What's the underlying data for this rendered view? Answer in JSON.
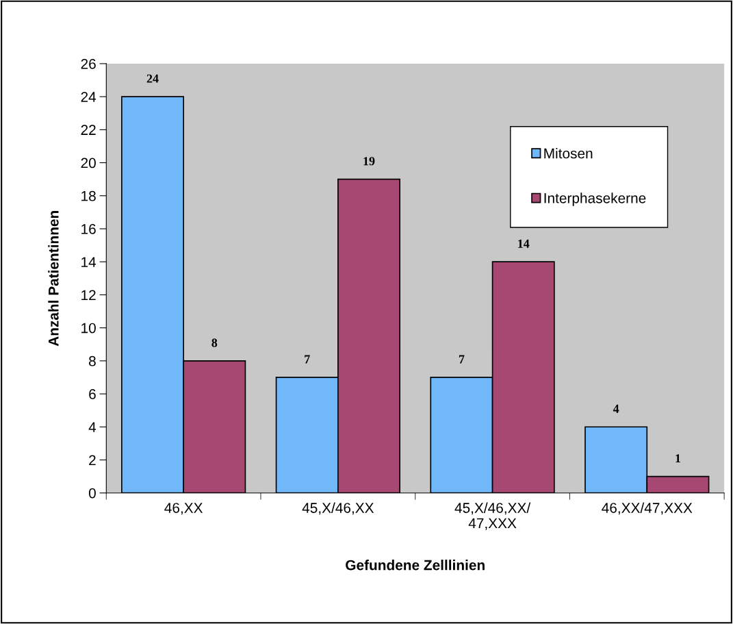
{
  "chart_data": {
    "type": "bar",
    "xlabel": "Gefundene Zelllinien",
    "ylabel": "Anzahl Patientinnen",
    "categories": [
      "46,XX",
      "45,X/46,XX",
      "45,X/46,XX/\n47,XXX",
      "46,XX/47,XXX"
    ],
    "series": [
      {
        "name": "Mitosen",
        "color": "#70b8fa",
        "values": [
          24,
          7,
          7,
          4
        ]
      },
      {
        "name": "Interphasekerne",
        "color": "#a64872",
        "values": [
          8,
          19,
          14,
          1
        ]
      }
    ],
    "ylim": [
      0,
      26
    ],
    "yticks": [
      0,
      2,
      4,
      6,
      8,
      10,
      12,
      14,
      16,
      18,
      20,
      22,
      24,
      26
    ],
    "grid": false,
    "legend": "top right",
    "data_labels": true
  }
}
